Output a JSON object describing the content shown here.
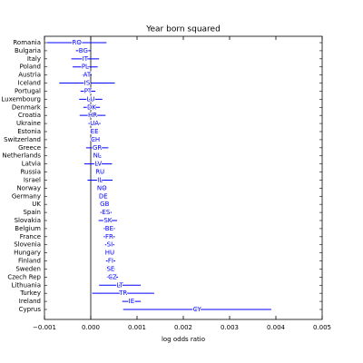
{
  "chart_data": {
    "type": "forest",
    "title": "Year born squared",
    "x_label": "log odds ratio",
    "color": "#0000ff",
    "categories": [
      "Romania",
      "Bulgaria",
      "Italy",
      "Poland",
      "Austria",
      "Iceland",
      "Portugal",
      "Luxembourg",
      "Denmark",
      "Croatia",
      "Ukraine",
      "Estonia",
      "Switzerland",
      "Greece",
      "Netherlands",
      "Latvia",
      "Russia",
      "Israel",
      "Norway",
      "Germany",
      "UK",
      "Spain",
      "Slovakia",
      "Belgium",
      "France",
      "Slovenia",
      "Hungary",
      "Finland",
      "Sweden",
      "Czech Rep",
      "Lithuania",
      "Turkey",
      "Ireland",
      "Cyprus"
    ],
    "codes": [
      "RO",
      "BG",
      "IT",
      "PL",
      "AT",
      "IS",
      "PT",
      "LU",
      "DK",
      "HR",
      "UA",
      "EE",
      "CH",
      "GR",
      "NL",
      "LV",
      "RU",
      "IL",
      "NO",
      "DE",
      "GB",
      "ES",
      "SK",
      "BE",
      "FR",
      "SI",
      "HU",
      "FI",
      "SE",
      "CZ",
      "LT",
      "TR",
      "IE",
      "CY"
    ],
    "values": [
      -0.0003,
      -0.00016,
      -0.00012,
      -0.00012,
      -8e-05,
      -8e-05,
      -6e-05,
      0,
      2e-05,
      4e-05,
      8e-05,
      8e-05,
      0.0001,
      0.00014,
      0.00014,
      0.00016,
      0.0002,
      0.0002,
      0.00024,
      0.00027,
      0.0003,
      0.00033,
      0.00037,
      0.0004,
      0.0004,
      0.00041,
      0.00041,
      0.00043,
      0.00043,
      0.00047,
      0.00063,
      0.0007,
      0.00088,
      0.0023
    ],
    "errors": [
      0.00064,
      0.00016,
      0.0003,
      0.00027,
      0.0001,
      0.0006,
      0.00016,
      0.00025,
      0.00018,
      0.00028,
      0.00013,
      0.0001,
      0.0001,
      0.00024,
      8e-05,
      0.0003,
      0.0001,
      0.00027,
      8e-05,
      4e-05,
      0.0001,
      0.00012,
      0.0002,
      0.00012,
      0.00012,
      0.0001,
      0.0001,
      0.0001,
      0.0001,
      0.00012,
      0.00045,
      0.00067,
      0.0002,
      0.0016
    ],
    "xlim": [
      -0.001,
      0.005
    ],
    "xticks": [
      {
        "value": -0.001,
        "label": "−0.001"
      },
      {
        "value": 0,
        "label": "0.000"
      },
      {
        "value": 0.001,
        "label": "0.001"
      },
      {
        "value": 0.002,
        "label": "0.002"
      },
      {
        "value": 0.003,
        "label": "0.003"
      },
      {
        "value": 0.004,
        "label": "0.004"
      },
      {
        "value": 0.005,
        "label": "0.005"
      }
    ]
  }
}
